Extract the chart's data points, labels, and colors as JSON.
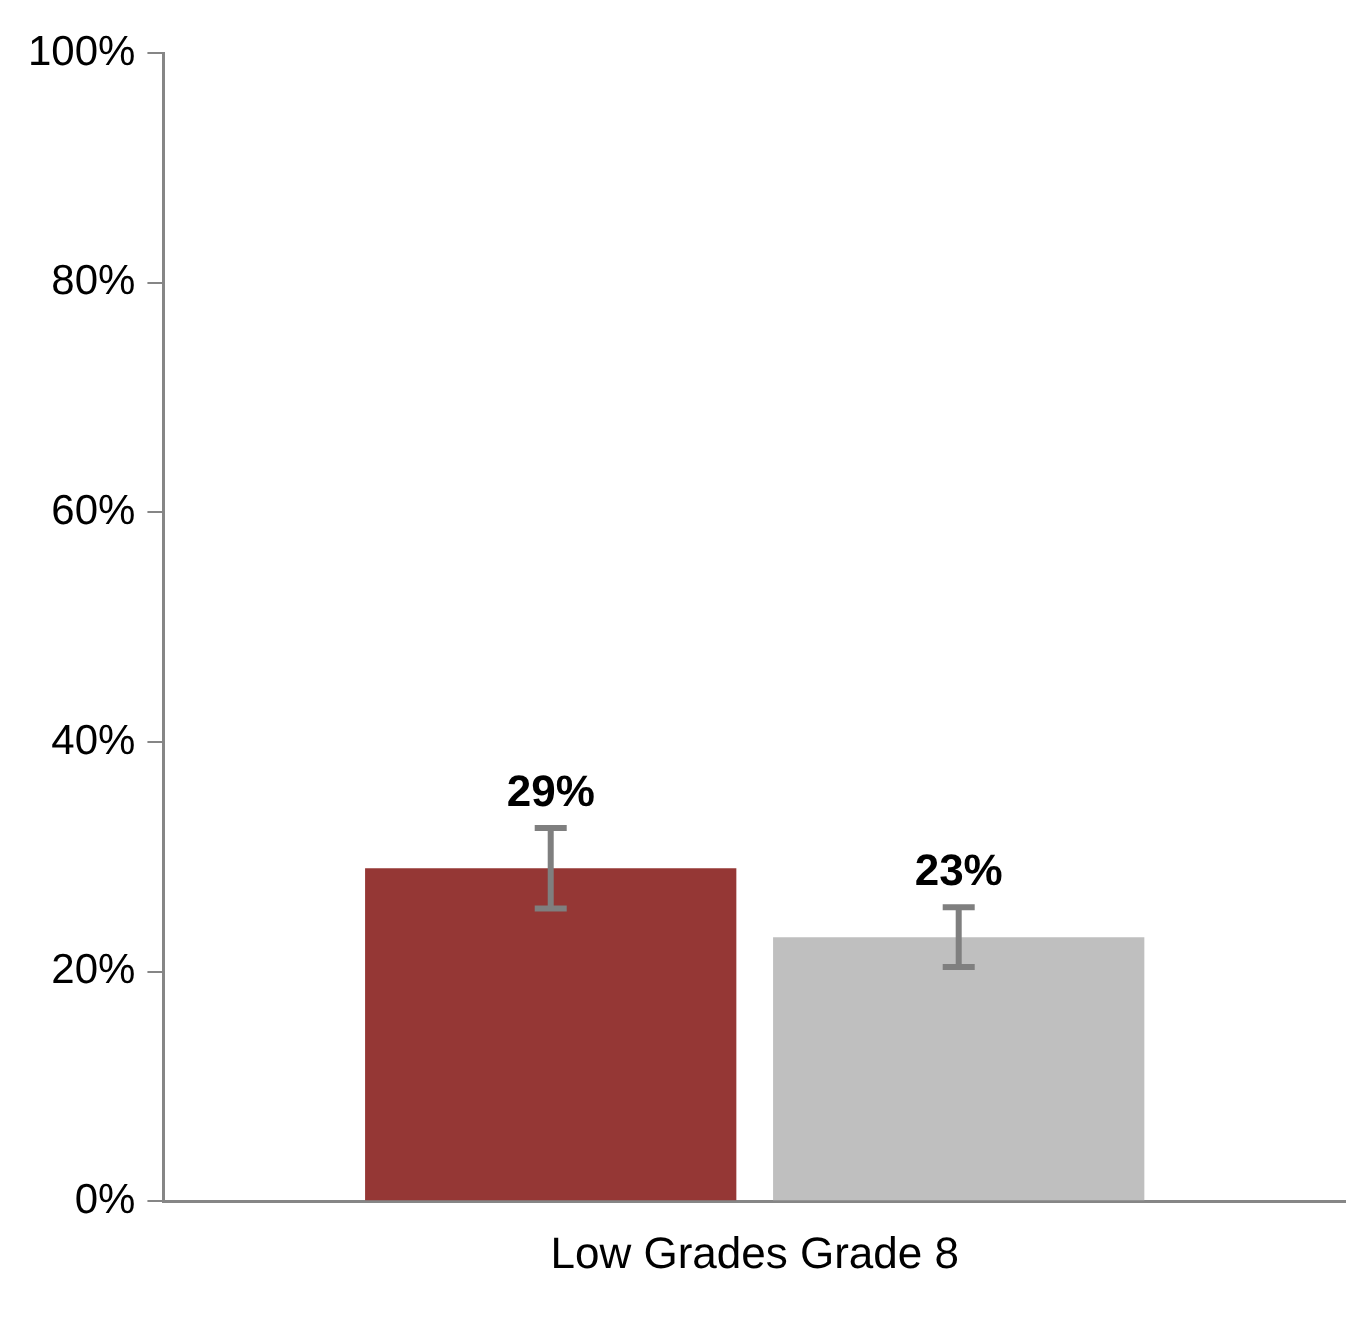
{
  "chart_data": {
    "type": "bar",
    "categories": [
      "Low Grades Grade 8"
    ],
    "series": [
      {
        "color": "#953735",
        "values": [
          29
        ],
        "errors": [
          3.5
        ],
        "value_labels": [
          "29%"
        ]
      },
      {
        "color": "#bfbfbf",
        "values": [
          23
        ],
        "errors": [
          2.6
        ],
        "value_labels": [
          "23%"
        ]
      }
    ],
    "ylim": [
      0,
      100
    ],
    "yticks": [
      {
        "value": 0,
        "label": "0%"
      },
      {
        "value": 20,
        "label": "20%"
      },
      {
        "value": 40,
        "label": "40%"
      },
      {
        "value": 60,
        "label": "60%"
      },
      {
        "value": 80,
        "label": "80%"
      },
      {
        "value": 100,
        "label": "100%"
      }
    ],
    "grid": false,
    "legend": false
  }
}
